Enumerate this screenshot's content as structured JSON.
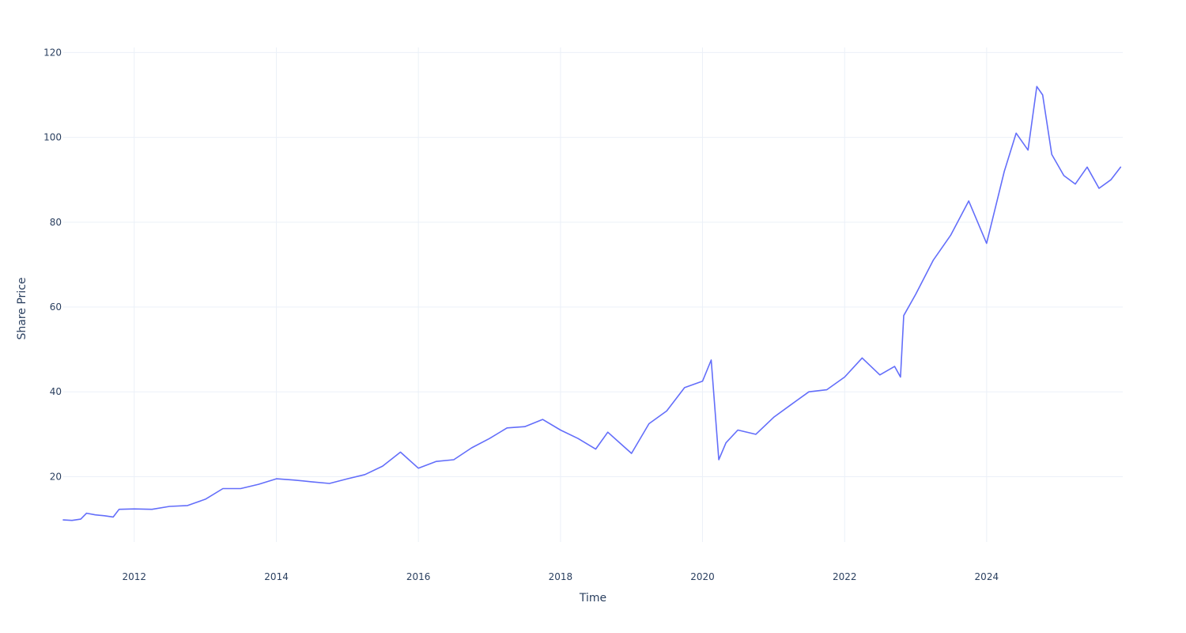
{
  "chart_data": {
    "type": "line",
    "title": "",
    "xlabel": "Time",
    "ylabel": "Share Price",
    "xlim": [
      "2011-01-01",
      "2025-12-01"
    ],
    "ylim": [
      4.6,
      121.2
    ],
    "x_ticks": [
      "2012",
      "2014",
      "2016",
      "2018",
      "2020",
      "2022",
      "2024"
    ],
    "y_ticks": [
      20,
      40,
      60,
      80,
      100,
      120
    ],
    "grid": true,
    "legend": "none",
    "series": [
      {
        "color": "#636efa",
        "points": [
          [
            "2011-01-01",
            9.8
          ],
          [
            "2011-02-15",
            9.7
          ],
          [
            "2011-04-01",
            10.0
          ],
          [
            "2011-05-01",
            11.4
          ],
          [
            "2011-06-15",
            11.0
          ],
          [
            "2011-08-01",
            10.8
          ],
          [
            "2011-09-15",
            10.5
          ],
          [
            "2011-10-15",
            12.3
          ],
          [
            "2012-01-01",
            12.4
          ],
          [
            "2012-04-01",
            12.3
          ],
          [
            "2012-07-01",
            13.0
          ],
          [
            "2012-10-01",
            13.2
          ],
          [
            "2013-01-01",
            14.7
          ],
          [
            "2013-04-01",
            17.2
          ],
          [
            "2013-07-01",
            17.2
          ],
          [
            "2013-10-01",
            18.2
          ],
          [
            "2014-01-01",
            19.5
          ],
          [
            "2014-04-01",
            19.2
          ],
          [
            "2014-07-01",
            18.8
          ],
          [
            "2014-10-01",
            18.4
          ],
          [
            "2015-01-01",
            19.5
          ],
          [
            "2015-04-01",
            20.5
          ],
          [
            "2015-07-01",
            22.5
          ],
          [
            "2015-10-01",
            25.8
          ],
          [
            "2016-01-01",
            22.0
          ],
          [
            "2016-04-01",
            23.6
          ],
          [
            "2016-07-01",
            24.0
          ],
          [
            "2016-10-01",
            26.8
          ],
          [
            "2017-01-01",
            29.0
          ],
          [
            "2017-04-01",
            31.5
          ],
          [
            "2017-07-01",
            31.8
          ],
          [
            "2017-10-01",
            33.5
          ],
          [
            "2018-01-01",
            31.0
          ],
          [
            "2018-04-01",
            29.0
          ],
          [
            "2018-07-01",
            26.5
          ],
          [
            "2018-09-01",
            30.5
          ],
          [
            "2018-11-01",
            28.0
          ],
          [
            "2019-01-01",
            25.5
          ],
          [
            "2019-04-01",
            32.5
          ],
          [
            "2019-07-01",
            35.5
          ],
          [
            "2019-10-01",
            41.0
          ],
          [
            "2020-01-01",
            42.5
          ],
          [
            "2020-02-15",
            47.5
          ],
          [
            "2020-03-25",
            24.0
          ],
          [
            "2020-05-01",
            28.0
          ],
          [
            "2020-07-01",
            31.0
          ],
          [
            "2020-10-01",
            30.0
          ],
          [
            "2021-01-01",
            34.0
          ],
          [
            "2021-04-01",
            37.0
          ],
          [
            "2021-07-01",
            40.0
          ],
          [
            "2021-10-01",
            40.5
          ],
          [
            "2022-01-01",
            43.5
          ],
          [
            "2022-04-01",
            48.0
          ],
          [
            "2022-07-01",
            44.0
          ],
          [
            "2022-09-15",
            46.0
          ],
          [
            "2022-10-15",
            43.5
          ],
          [
            "2022-11-01",
            58.0
          ],
          [
            "2023-01-01",
            63.0
          ],
          [
            "2023-04-01",
            71.0
          ],
          [
            "2023-07-01",
            77.0
          ],
          [
            "2023-10-01",
            85.0
          ],
          [
            "2024-01-01",
            75.0
          ],
          [
            "2024-04-01",
            92.0
          ],
          [
            "2024-06-01",
            101.0
          ],
          [
            "2024-08-01",
            97.0
          ],
          [
            "2024-09-15",
            112.0
          ],
          [
            "2024-10-15",
            110.0
          ],
          [
            "2024-12-01",
            96.0
          ],
          [
            "2025-02-01",
            91.0
          ],
          [
            "2025-04-01",
            89.0
          ],
          [
            "2025-06-01",
            93.0
          ],
          [
            "2025-08-01",
            88.0
          ],
          [
            "2025-10-01",
            90.0
          ],
          [
            "2025-11-20",
            93.0
          ]
        ]
      }
    ]
  }
}
